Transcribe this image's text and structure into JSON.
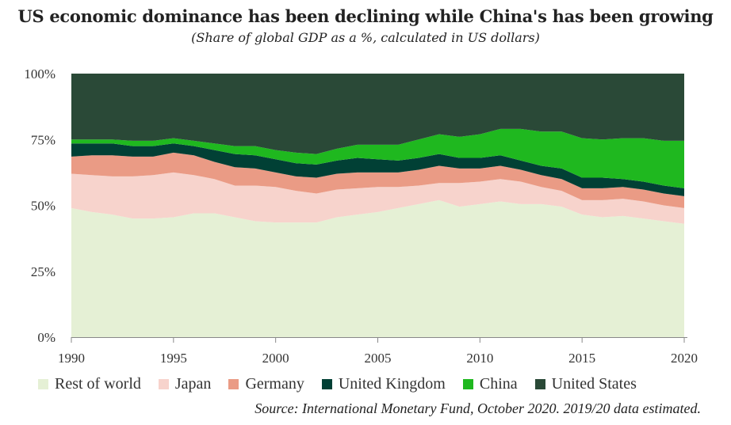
{
  "title": "US economic dominance has been declining while China's has been growing",
  "subtitle": "(Share of global GDP as a %, calculated in US dollars)",
  "source": "Source: International Monetary Fund, October 2020. 2019/20 data estimated.",
  "chart_data": {
    "type": "area",
    "stacked": true,
    "title": "US economic dominance has been declining while China's has been growing",
    "subtitle": "(Share of global GDP as a %, calculated in US dollars)",
    "xlabel": "",
    "ylabel": "",
    "xlim": [
      1990,
      2020
    ],
    "ylim": [
      0,
      100
    ],
    "x_ticks": [
      1990,
      1995,
      2000,
      2005,
      2010,
      2015,
      2020
    ],
    "y_ticks": [
      0,
      25,
      50,
      75,
      100
    ],
    "y_tick_labels": [
      "0%",
      "25%",
      "50%",
      "75%",
      "100%"
    ],
    "grid": false,
    "legend_position": "bottom",
    "x": [
      1990,
      1991,
      1992,
      1993,
      1994,
      1995,
      1996,
      1997,
      1998,
      1999,
      2000,
      2001,
      2002,
      2003,
      2004,
      2005,
      2006,
      2007,
      2008,
      2009,
      2010,
      2011,
      2012,
      2013,
      2014,
      2015,
      2016,
      2017,
      2018,
      2019,
      2020
    ],
    "series": [
      {
        "name": "Rest of world",
        "color": "#e5f0d5",
        "values": [
          49,
          47.5,
          46.5,
          45,
          45,
          45.5,
          47,
          47,
          45.5,
          44,
          43.5,
          43.5,
          43.5,
          45.5,
          46.5,
          47.5,
          49,
          50.5,
          52,
          49.5,
          50.5,
          51.5,
          50.5,
          50.5,
          49.5,
          46.5,
          45.5,
          46,
          45,
          44,
          43
        ]
      },
      {
        "name": "Japan",
        "color": "#f7d3cc",
        "values": [
          13,
          14,
          14.5,
          16,
          16.5,
          17,
          14.5,
          13,
          12,
          13.5,
          13.5,
          12,
          11,
          10.5,
          10,
          9.5,
          8,
          7,
          6.5,
          9,
          8.5,
          8.5,
          8.5,
          6.5,
          6,
          5.5,
          6.5,
          6.5,
          6.5,
          6,
          6
        ]
      },
      {
        "name": "Germany",
        "color": "#ea9b85",
        "values": [
          6.5,
          7.5,
          8,
          7.5,
          7,
          7.5,
          7.5,
          6.5,
          7,
          6.5,
          5.5,
          5.5,
          6,
          6,
          6,
          5.5,
          5.5,
          6,
          6.5,
          5.5,
          5,
          5,
          4.5,
          4.5,
          4.5,
          4.5,
          4.5,
          4.5,
          4.5,
          4.5,
          4.5
        ]
      },
      {
        "name": "United Kingdom",
        "color": "#014035",
        "values": [
          5,
          4.5,
          4.5,
          4,
          4,
          3.5,
          3.5,
          4.5,
          5,
          5,
          5,
          5,
          5,
          5,
          5.5,
          5,
          4.5,
          4.5,
          4.5,
          4,
          4,
          4,
          3.5,
          3.5,
          4,
          4,
          4,
          3,
          3,
          3,
          3
        ]
      },
      {
        "name": "China",
        "color": "#1fb81f",
        "values": [
          1.5,
          1.5,
          1.5,
          2,
          2,
          2,
          2,
          2.5,
          3,
          3.5,
          3.5,
          4,
          4,
          4.5,
          5,
          5.5,
          6,
          7,
          7.5,
          8,
          9,
          10,
          12,
          13,
          14,
          15,
          14.5,
          15.5,
          16.5,
          17,
          18
        ]
      },
      {
        "name": "United States",
        "color": "#2a4937",
        "values": [
          25,
          25,
          25,
          25.5,
          25.5,
          24.5,
          25.5,
          26.5,
          27.5,
          27.5,
          29,
          30,
          30.5,
          28.5,
          27,
          27,
          27,
          25,
          23,
          24,
          23,
          21,
          21,
          22,
          22,
          24.5,
          25,
          24.5,
          24.5,
          25.5,
          25.5
        ]
      }
    ]
  }
}
